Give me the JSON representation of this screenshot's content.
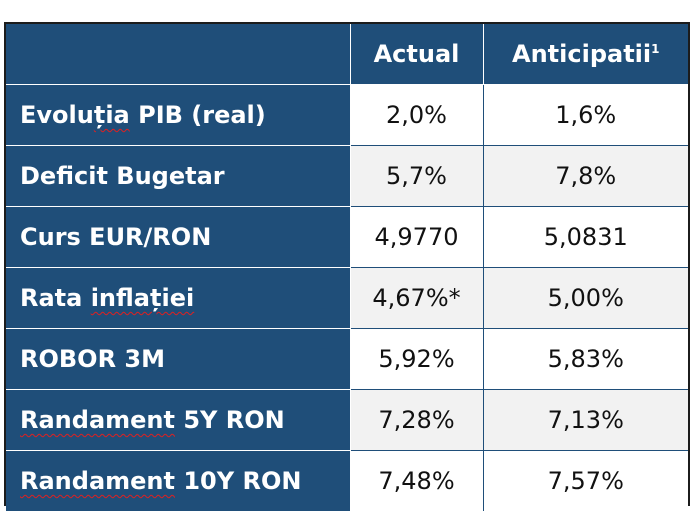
{
  "table": {
    "headers": {
      "actual": "Actual",
      "anticipated": "Anticipatii",
      "anticipated_footnote": "1"
    },
    "rows": [
      {
        "label_pre": "Evolu",
        "label_mark": "ția",
        "label_post": " PIB (real)",
        "actual": "2,0%",
        "anticipated": "1,6%"
      },
      {
        "label_pre": "Deficit Bugetar",
        "label_mark": "",
        "label_post": "",
        "actual": "5,7%",
        "anticipated": "7,8%"
      },
      {
        "label_pre": "Curs EUR/RON",
        "label_mark": "",
        "label_post": "",
        "actual": "4,9770",
        "anticipated": "5,0831"
      },
      {
        "label_pre": "Rata ",
        "label_mark": "inflației",
        "label_post": "",
        "actual": "4,67%*",
        "anticipated": "5,00%"
      },
      {
        "label_pre": "ROBOR 3M",
        "label_mark": "",
        "label_post": "",
        "actual": "5,92%",
        "anticipated": "5,83%"
      },
      {
        "label_pre": "",
        "label_mark": "Randament",
        "label_post": " 5Y RON",
        "actual": "7,28%",
        "anticipated": "7,13%"
      },
      {
        "label_pre": "",
        "label_mark": "Randament",
        "label_post": " 10Y RON",
        "actual": "7,48%",
        "anticipated": "7,57%"
      }
    ]
  }
}
